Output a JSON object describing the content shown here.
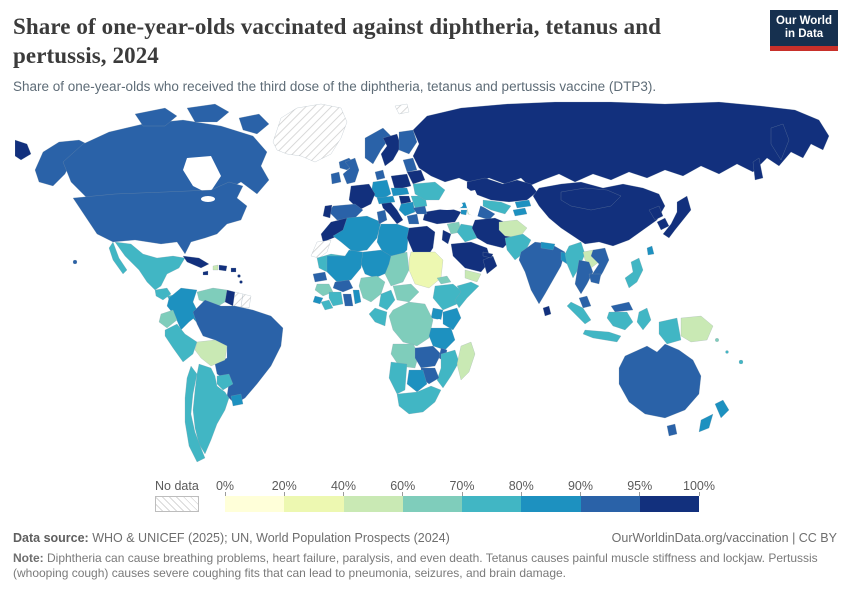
{
  "logo": {
    "line1": "Our World",
    "line2": "in Data",
    "bg_color": "#16304f",
    "underline_color": "#c8302a"
  },
  "header": {
    "title": "Share of one-year-olds vaccinated against diphtheria, tetanus and pertussis, 2024",
    "subtitle": "Share of one-year-olds who received the third dose of the diphtheria, tetanus and pertussis vaccine (DTP3)."
  },
  "legend": {
    "no_data_label": "No data",
    "tick_labels": [
      "0%",
      "20%",
      "40%",
      "60%",
      "70%",
      "80%",
      "90%",
      "95%",
      "100%"
    ]
  },
  "footer": {
    "data_source_label": "Data source:",
    "data_source": " WHO & UNICEF (2025); UN, World Population Prospects (2024)",
    "link": "OurWorldinData.org/vaccination | CC BY",
    "note_label": "Note:",
    "note": " Diphtheria can cause breathing problems, heart failure, paralysis, and even death. Tetanus causes painful muscle stiffness and lockjaw. Pertussis (whooping cough) causes severe coughing fits that can lead to pneumonia, seizures, and brain damage."
  },
  "chart_data": {
    "type": "choropleth-map",
    "title": "Share of one-year-olds vaccinated against diphtheria, tetanus and pertussis, 2024",
    "unit": "%",
    "legend_position": "bottom",
    "bins": [
      {
        "range": "0-20%",
        "color": "#ffffd9"
      },
      {
        "range": "20-40%",
        "color": "#edf8b1"
      },
      {
        "range": "40-60%",
        "color": "#c9e9b4"
      },
      {
        "range": "60-70%",
        "color": "#7fcdbb"
      },
      {
        "range": "70-80%",
        "color": "#41b6c4"
      },
      {
        "range": "80-90%",
        "color": "#1d91c0"
      },
      {
        "range": "90-95%",
        "color": "#2a62a8"
      },
      {
        "range": "95-100%",
        "color": "#12307d"
      }
    ],
    "bin_color_map": {
      "0-20": "#ffffd9",
      "20-40": "#edf8b1",
      "40-60": "#c9e9b4",
      "60-70": "#7fcdbb",
      "70-80": "#41b6c4",
      "80-90": "#1d91c0",
      "90-95": "#2a62a8",
      "95-100": "#12307d",
      "no-data": "hatch"
    },
    "countries": {
      "russia": "95-100",
      "kazakhstan": "95-100",
      "china": "95-100",
      "mongolia": "95-100",
      "japan": "95-100",
      "north-korea": "95-100",
      "south-korea": "95-100",
      "iran": "95-100",
      "turkey": "95-100",
      "saudi-arabia": "95-100",
      "oman": "95-100",
      "uae": "95-100",
      "israel-jordan": "95-100",
      "egypt": "95-100",
      "morocco": "95-100",
      "france": "95-100",
      "italy": "95-100",
      "poland": "95-100",
      "sweden": "95-100",
      "belarus": "95-100",
      "portugal": "95-100",
      "hungary": "95-100",
      "cuba": "95-100",
      "dominican-republic": "95-100",
      "jamaica": "95-100",
      "puerto-rico": "95-100",
      "guyana": "95-100",
      "costa-rica": "95-100",
      "sri-lanka": "95-100",
      "lesser-antilles": "95-100",
      "united-states": "90-95",
      "canada": "90-95",
      "brazil": "90-95",
      "india": "90-95",
      "australia": "90-95",
      "thailand": "90-95",
      "vietnam": "90-95",
      "cambodia": "90-95",
      "malaysia": "90-95",
      "spain": "90-95",
      "united-kingdom": "90-95",
      "ireland": "90-95",
      "iceland": "90-95",
      "norway": "90-95",
      "finland": "90-95",
      "denmark": "90-95",
      "greece": "90-95",
      "bulgaria": "90-95",
      "baltics": "90-95",
      "senegal": "90-95",
      "ghana": "90-95",
      "burkina-faso": "90-95",
      "zambia": "90-95",
      "zimbabwe": "90-95",
      "malawi": "90-95",
      "turkmenistan": "90-95",
      "tunisia": "90-95",
      "colombia": "80-90",
      "germany": "80-90",
      "kenya": "80-90",
      "uganda": "80-90",
      "tanzania": "80-90",
      "mali": "80-90",
      "niger": "80-90",
      "algeria": "80-90",
      "libya": "80-90",
      "botswana": "80-90",
      "new-zealand": "80-90",
      "austria-switzerland": "80-90",
      "czechia-slovakia": "80-90",
      "bangladesh": "80-90",
      "nepal": "80-90",
      "panama": "80-90",
      "sierra-leone": "80-90",
      "togo-benin": "80-90",
      "uruguay": "80-90",
      "taiwan": "80-90",
      "georgia": "80-90",
      "armenia": "80-90",
      "kyrgyzstan": "80-90",
      "tajikistan": "80-90",
      "balkans": "80-90",
      "mexico": "70-80",
      "guatemala": "70-80",
      "honduras": "70-80",
      "peru": "70-80",
      "argentina": "70-80",
      "chile": "70-80",
      "paraguay": "70-80",
      "ukraine": "70-80",
      "romania": "70-80",
      "pakistan": "70-80",
      "myanmar": "70-80",
      "indonesia": "70-80",
      "philippines": "70-80",
      "ethiopia": "70-80",
      "somalia": "70-80",
      "south-africa": "70-80",
      "namibia": "70-80",
      "mozambique": "70-80",
      "iraq": "70-80",
      "uzbekistan": "70-80",
      "cameroon": "70-80",
      "congo-gabon": "70-80",
      "mauritania": "70-80",
      "liberia": "70-80",
      "cote-divoire": "70-80",
      "fiji": "70-80",
      "vanuatu": "70-80",
      "venezuela": "60-70",
      "ecuador": "60-70",
      "drc": "60-70",
      "central-african-republic": "60-70",
      "angola": "60-70",
      "nigeria": "60-70",
      "chad": "60-70",
      "syria": "60-70",
      "guinea": "60-70",
      "eritrea": "60-70",
      "solomon-islands": "60-70",
      "bolivia": "40-60",
      "madagascar": "40-60",
      "afghanistan": "40-60",
      "papua-new-guinea": "40-60",
      "yemen": "40-60",
      "azerbaijan": "40-60",
      "laos": "40-60",
      "haiti": "40-60",
      "sudan": "20-40",
      "greenland": "no-data",
      "western-sahara": "no-data",
      "suriname": "no-data",
      "french-guiana": "no-data",
      "nicaragua": "no-data",
      "svalbard": "no-data"
    }
  }
}
